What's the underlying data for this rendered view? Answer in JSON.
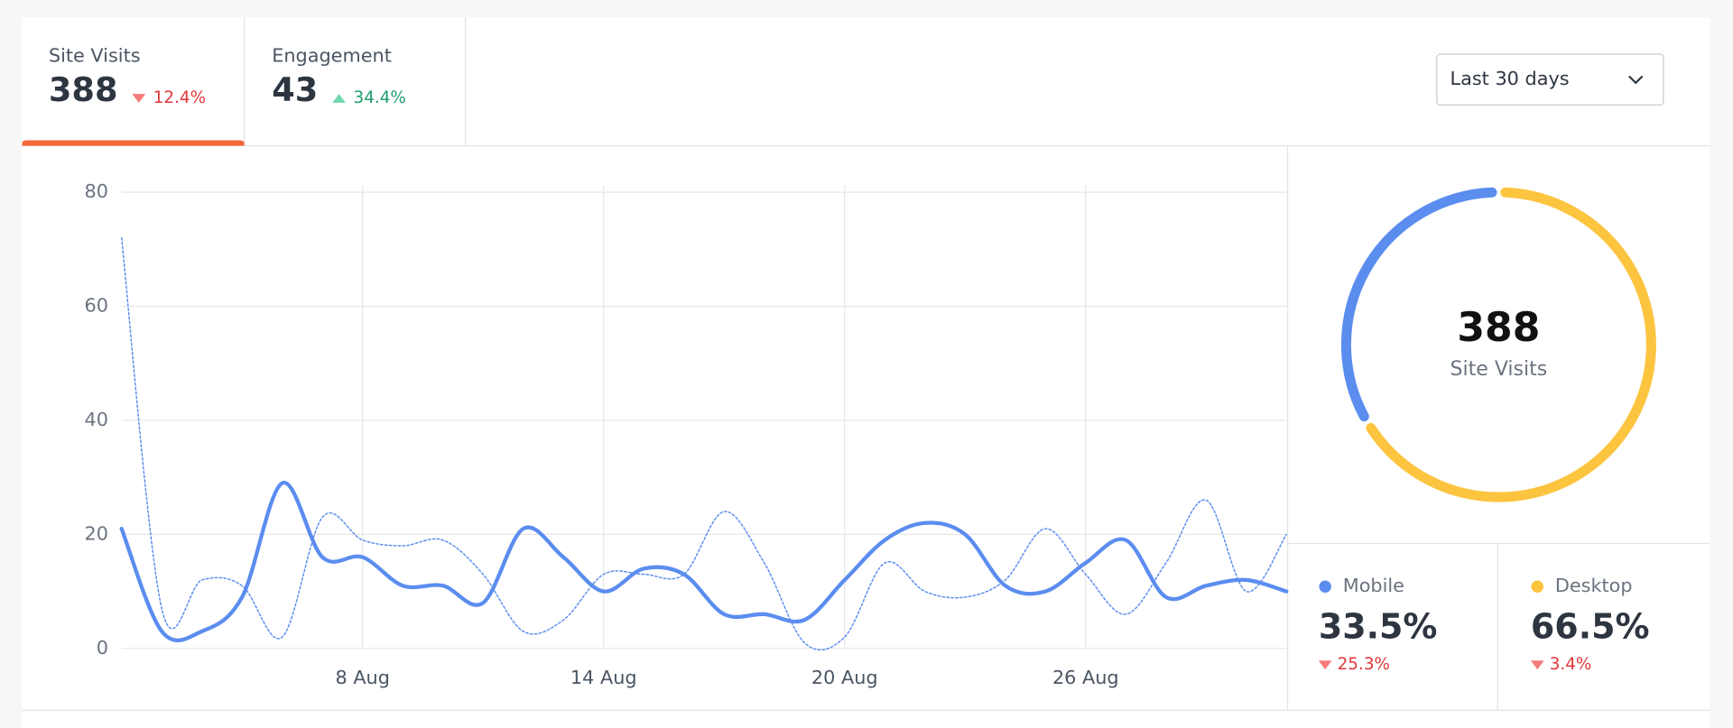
{
  "tabs": [
    {
      "label": "Site Visits",
      "value": "388",
      "change": "12.4%",
      "trend": "down",
      "active": true
    },
    {
      "label": "Engagement",
      "value": "43",
      "change": "34.4%",
      "trend": "up",
      "active": false
    }
  ],
  "range_select": {
    "label": "Last 30 days"
  },
  "chart_data": [
    {
      "type": "line",
      "categories": [
        null,
        null,
        null,
        null,
        null,
        null,
        "8 Aug",
        null,
        null,
        null,
        null,
        null,
        "14 Aug",
        null,
        null,
        null,
        null,
        null,
        "20 Aug",
        null,
        null,
        null,
        null,
        null,
        "26 Aug",
        null,
        null,
        null,
        null,
        null
      ],
      "series": [
        {
          "color": "#5b8def",
          "style": "solid",
          "values": [
            21,
            3,
            3,
            9,
            29,
            16,
            16,
            11,
            11,
            8,
            21,
            16,
            10,
            14,
            13,
            6,
            6,
            5,
            12,
            19,
            22,
            20,
            11,
            10,
            15,
            19,
            9,
            11,
            12,
            10
          ]
        },
        {
          "color": "#5b8def",
          "style": "dotted",
          "values": [
            72,
            7,
            12,
            11,
            2,
            23,
            19,
            18,
            19,
            13,
            3,
            5,
            13,
            13,
            13,
            24,
            15,
            1,
            2,
            15,
            10,
            9,
            12,
            21,
            13,
            6,
            15,
            26,
            10,
            20
          ]
        }
      ],
      "ylim": [
        0,
        80
      ],
      "yticks": [
        0,
        20,
        40,
        60,
        80
      ],
      "grid": true
    },
    {
      "type": "pie",
      "center_value": "388",
      "center_label": "Site Visits",
      "categories": [
        "Mobile",
        "Desktop"
      ],
      "values": [
        33.5,
        66.5
      ],
      "value_labels": [
        "33.5%",
        "66.5%"
      ],
      "colors": [
        "#5b8def",
        "#fcc43f"
      ],
      "changes": [
        "25.3%",
        "3.4%"
      ],
      "change_trends": [
        "down",
        "down"
      ]
    }
  ]
}
